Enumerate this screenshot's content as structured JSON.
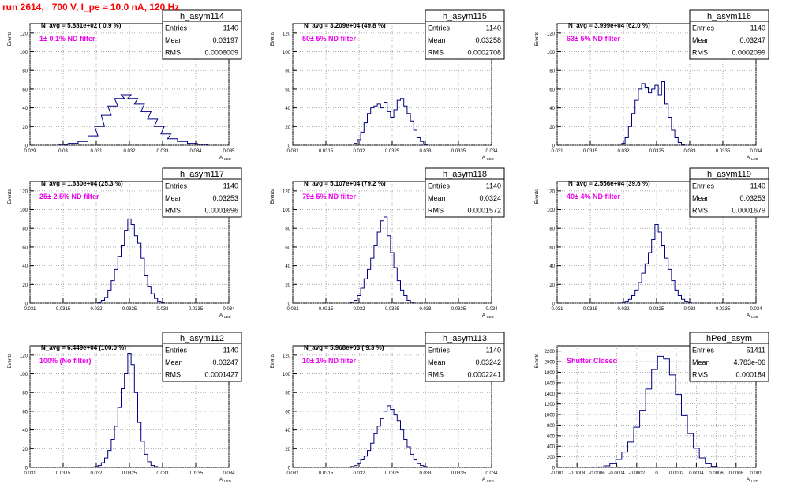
{
  "page": {
    "title": "run 2614,   700 V, I_pe ≈ 10.0 nA, 120 Hz"
  },
  "chart_data": [
    {
      "type": "bar",
      "name": "h_asym114",
      "title": "h_asym114",
      "stats": {
        "Entries": "1140",
        "Mean": "0.03197",
        "RMS": "0.0006009"
      },
      "navg": "N_avg = 5.881e+02 ( 0.9 %)",
      "filter": "1± 0.1% ND filter",
      "ylabel": "Events",
      "xlabel": "A",
      "xlabel_sub": "LED",
      "xlim": [
        0.029,
        0.035
      ],
      "ylim": [
        0,
        130
      ],
      "xticks": [
        "0.029",
        "0.03",
        "0.031",
        "0.032",
        "0.033",
        "0.034",
        "0.035"
      ],
      "yticks": [
        "0",
        "20",
        "40",
        "60",
        "80",
        "100",
        "120"
      ],
      "x": [
        0.03,
        0.0303,
        0.0306,
        0.0309,
        0.0311,
        0.0313,
        0.0315,
        0.0317,
        0.0319,
        0.0321,
        0.0323,
        0.0325,
        0.0327,
        0.0329,
        0.0331,
        0.0333,
        0.0336,
        0.0339,
        0.0342
      ],
      "values": [
        1,
        2,
        4,
        10,
        20,
        32,
        42,
        50,
        54,
        50,
        44,
        36,
        28,
        20,
        12,
        7,
        4,
        2,
        1
      ]
    },
    {
      "type": "bar",
      "name": "h_asym115",
      "title": "h_asym115",
      "stats": {
        "Entries": "1140",
        "Mean": "0.03258",
        "RMS": "0.0002708"
      },
      "navg": "N_avg = 3.209e+04 (49.8 %)",
      "filter": "50± 5% ND filter",
      "ylabel": "Events",
      "xlabel": "A",
      "xlabel_sub": "LED",
      "xlim": [
        0.031,
        0.034
      ],
      "ylim": [
        0,
        130
      ],
      "xticks": [
        "0.031",
        "0.0315",
        "0.032",
        "0.0325",
        "0.033",
        "0.0335",
        "0.034"
      ],
      "yticks": [
        "0",
        "20",
        "40",
        "60",
        "80",
        "100",
        "120"
      ],
      "x": [
        0.03195,
        0.032,
        0.03205,
        0.0321,
        0.03215,
        0.0322,
        0.03225,
        0.0323,
        0.03235,
        0.0324,
        0.03245,
        0.0325,
        0.03255,
        0.0326,
        0.03265,
        0.0327,
        0.03275,
        0.0328,
        0.03285,
        0.0329,
        0.03295,
        0.033
      ],
      "values": [
        2,
        6,
        14,
        24,
        34,
        40,
        42,
        44,
        40,
        46,
        36,
        30,
        38,
        48,
        50,
        42,
        34,
        26,
        16,
        8,
        4,
        1
      ]
    },
    {
      "type": "bar",
      "name": "h_asym116",
      "title": "h_asym116",
      "stats": {
        "Entries": "1140",
        "Mean": "0.03247",
        "RMS": "0.0002099"
      },
      "navg": "N_avg = 3.999e+04 (62.0 %)",
      "filter": "63± 5% ND filter",
      "ylabel": "Events",
      "xlabel": "A",
      "xlabel_sub": "LED",
      "xlim": [
        0.031,
        0.034
      ],
      "ylim": [
        0,
        130
      ],
      "xticks": [
        "0.031",
        "0.0315",
        "0.032",
        "0.0325",
        "0.033",
        "0.0335",
        "0.034"
      ],
      "yticks": [
        "0",
        "20",
        "40",
        "60",
        "80",
        "100",
        "120"
      ],
      "x": [
        0.032,
        0.03205,
        0.0321,
        0.03215,
        0.0322,
        0.03225,
        0.0323,
        0.03235,
        0.0324,
        0.03245,
        0.0325,
        0.03255,
        0.0326,
        0.03265,
        0.0327,
        0.03275,
        0.0328,
        0.03285,
        0.0329
      ],
      "values": [
        2,
        8,
        20,
        34,
        48,
        60,
        66,
        62,
        56,
        60,
        64,
        54,
        68,
        44,
        30,
        16,
        8,
        3,
        1
      ]
    },
    {
      "type": "bar",
      "name": "h_asym117",
      "title": "h_asym117",
      "stats": {
        "Entries": "1140",
        "Mean": "0.03253",
        "RMS": "0.0001696"
      },
      "navg": "N_avg = 1.630e+04 (25.3 %)",
      "filter": "25± 2.5% ND filter",
      "ylabel": "Events",
      "xlabel": "A",
      "xlabel_sub": "LED",
      "xlim": [
        0.031,
        0.034
      ],
      "ylim": [
        0,
        130
      ],
      "xticks": [
        "0.031",
        "0.0315",
        "0.032",
        "0.0325",
        "0.033",
        "0.0335",
        "0.034"
      ],
      "yticks": [
        "0",
        "20",
        "40",
        "60",
        "80",
        "100",
        "120"
      ],
      "x": [
        0.03205,
        0.0321,
        0.03215,
        0.0322,
        0.03225,
        0.0323,
        0.03235,
        0.0324,
        0.03245,
        0.0325,
        0.03255,
        0.0326,
        0.03265,
        0.0327,
        0.03275,
        0.0328,
        0.03285,
        0.0329,
        0.03295,
        0.033
      ],
      "values": [
        1,
        3,
        6,
        14,
        24,
        36,
        50,
        62,
        78,
        90,
        84,
        72,
        64,
        48,
        30,
        18,
        10,
        5,
        2,
        1
      ]
    },
    {
      "type": "bar",
      "name": "h_asym118",
      "title": "h_asym118",
      "stats": {
        "Entries": "1140",
        "Mean": "0.0324",
        "RMS": "0.0001572"
      },
      "navg": "N_avg = 5.107e+04 (79.2 %)",
      "filter": "79± 5% ND filter",
      "ylabel": "Events",
      "xlabel": "A",
      "xlabel_sub": "LED",
      "xlim": [
        0.031,
        0.034
      ],
      "ylim": [
        0,
        130
      ],
      "xticks": [
        "0.031",
        "0.0315",
        "0.032",
        "0.0325",
        "0.033",
        "0.0335",
        "0.034"
      ],
      "yticks": [
        "0",
        "20",
        "40",
        "60",
        "80",
        "100",
        "120"
      ],
      "x": [
        0.0319,
        0.03195,
        0.032,
        0.03205,
        0.0321,
        0.03215,
        0.0322,
        0.03225,
        0.0323,
        0.03235,
        0.0324,
        0.03245,
        0.0325,
        0.03255,
        0.0326,
        0.03265,
        0.0327,
        0.03275,
        0.0328
      ],
      "values": [
        1,
        3,
        8,
        16,
        26,
        36,
        48,
        62,
        76,
        88,
        92,
        72,
        54,
        38,
        24,
        14,
        8,
        3,
        1
      ]
    },
    {
      "type": "bar",
      "name": "h_asym119",
      "title": "h_asym119",
      "stats": {
        "Entries": "1140",
        "Mean": "0.03253",
        "RMS": "0.0001679"
      },
      "navg": "N_avg = 2.556e+04 (39.6 %)",
      "filter": "40± 4% ND filter",
      "ylabel": "Events",
      "xlabel": "A",
      "xlabel_sub": "LED",
      "xlim": [
        0.031,
        0.034
      ],
      "ylim": [
        0,
        130
      ],
      "xticks": [
        "0.031",
        "0.0315",
        "0.032",
        "0.0325",
        "0.033",
        "0.0335",
        "0.034"
      ],
      "yticks": [
        "0",
        "20",
        "40",
        "60",
        "80",
        "100",
        "120"
      ],
      "x": [
        0.032,
        0.03205,
        0.0321,
        0.03215,
        0.0322,
        0.03225,
        0.0323,
        0.03235,
        0.0324,
        0.03245,
        0.0325,
        0.03255,
        0.0326,
        0.03265,
        0.0327,
        0.03275,
        0.0328,
        0.03285,
        0.0329,
        0.03295,
        0.033
      ],
      "values": [
        1,
        2,
        4,
        8,
        14,
        22,
        32,
        42,
        54,
        68,
        84,
        76,
        62,
        48,
        36,
        24,
        14,
        8,
        4,
        2,
        1
      ]
    },
    {
      "type": "bar",
      "name": "h_asym112",
      "title": "h_asym112",
      "stats": {
        "Entries": "1140",
        "Mean": "0.03247",
        "RMS": "0.0001427"
      },
      "navg": "N_avg = 6.449e+04 (100.0 %)",
      "filter": "100% (No filter)",
      "ylabel": "Events",
      "xlabel": "A",
      "xlabel_sub": "LED",
      "xlim": [
        0.031,
        0.034
      ],
      "ylim": [
        0,
        130
      ],
      "xticks": [
        "0.031",
        "0.0315",
        "0.032",
        "0.0325",
        "0.033",
        "0.0335",
        "0.034"
      ],
      "yticks": [
        "0",
        "20",
        "40",
        "60",
        "80",
        "100",
        "120"
      ],
      "x": [
        0.032,
        0.03205,
        0.0321,
        0.03215,
        0.0322,
        0.03225,
        0.0323,
        0.03235,
        0.0324,
        0.03245,
        0.0325,
        0.03255,
        0.0326,
        0.03265,
        0.0327,
        0.03275,
        0.0328,
        0.03285,
        0.0329
      ],
      "values": [
        1,
        2,
        5,
        10,
        18,
        30,
        44,
        64,
        84,
        100,
        122,
        110,
        80,
        48,
        28,
        14,
        6,
        2,
        1
      ]
    },
    {
      "type": "bar",
      "name": "h_asym113",
      "title": "h_asym113",
      "stats": {
        "Entries": "1140",
        "Mean": "0.03242",
        "RMS": "0.0002241"
      },
      "navg": "N_avg = 5.968e+03 ( 9.3 %)",
      "filter": "10± 1% ND filter",
      "ylabel": "Events",
      "xlabel": "A",
      "xlabel_sub": "LED",
      "xlim": [
        0.031,
        0.034
      ],
      "ylim": [
        0,
        130
      ],
      "xticks": [
        "0.031",
        "0.0315",
        "0.032",
        "0.0325",
        "0.033",
        "0.0335",
        "0.034"
      ],
      "yticks": [
        "0",
        "20",
        "40",
        "60",
        "80",
        "100",
        "120"
      ],
      "x": [
        0.0319,
        0.03195,
        0.032,
        0.03205,
        0.0321,
        0.03215,
        0.0322,
        0.03225,
        0.0323,
        0.03235,
        0.0324,
        0.03245,
        0.0325,
        0.03255,
        0.0326,
        0.03265,
        0.0327,
        0.03275,
        0.0328,
        0.03285,
        0.0329,
        0.03295,
        0.033
      ],
      "values": [
        1,
        2,
        4,
        8,
        12,
        18,
        26,
        36,
        44,
        52,
        60,
        66,
        62,
        56,
        50,
        40,
        30,
        22,
        14,
        8,
        4,
        2,
        1
      ]
    },
    {
      "type": "bar",
      "name": "hPed_asym",
      "title": "hPed_asym",
      "stats": {
        "Entries": "51411",
        "Mean": "4.783e-06",
        "RMS": "0.000184"
      },
      "navg": "",
      "filter": "Shutter Closed",
      "ylabel": "Events",
      "xlabel": "A",
      "xlabel_sub": "LED",
      "xlim": [
        -0.001,
        0.001
      ],
      "ylim": [
        0,
        2300
      ],
      "xticks": [
        "-0.001",
        "-0.0008",
        "-0.0006",
        "-0.0004",
        "-0.0002",
        "0",
        "0.0002",
        "0.0004",
        "0.0006",
        "0.0008",
        "0.001"
      ],
      "yticks": [
        "0",
        "200",
        "400",
        "600",
        "800",
        "1000",
        "1200",
        "1400",
        "1600",
        "1800",
        "2000",
        "2200"
      ],
      "x": [
        -0.00056,
        -0.0005,
        -0.00044,
        -0.00038,
        -0.00032,
        -0.00026,
        -0.0002,
        -0.00014,
        -8e-05,
        -2e-05,
        4e-05,
        0.0001,
        0.00016,
        0.00022,
        0.00028,
        0.00034,
        0.0004,
        0.00046,
        0.00052,
        0.00058
      ],
      "values": [
        10,
        30,
        70,
        150,
        290,
        480,
        760,
        1080,
        1480,
        1850,
        2100,
        2050,
        1750,
        1380,
        980,
        640,
        360,
        180,
        70,
        20
      ]
    }
  ]
}
